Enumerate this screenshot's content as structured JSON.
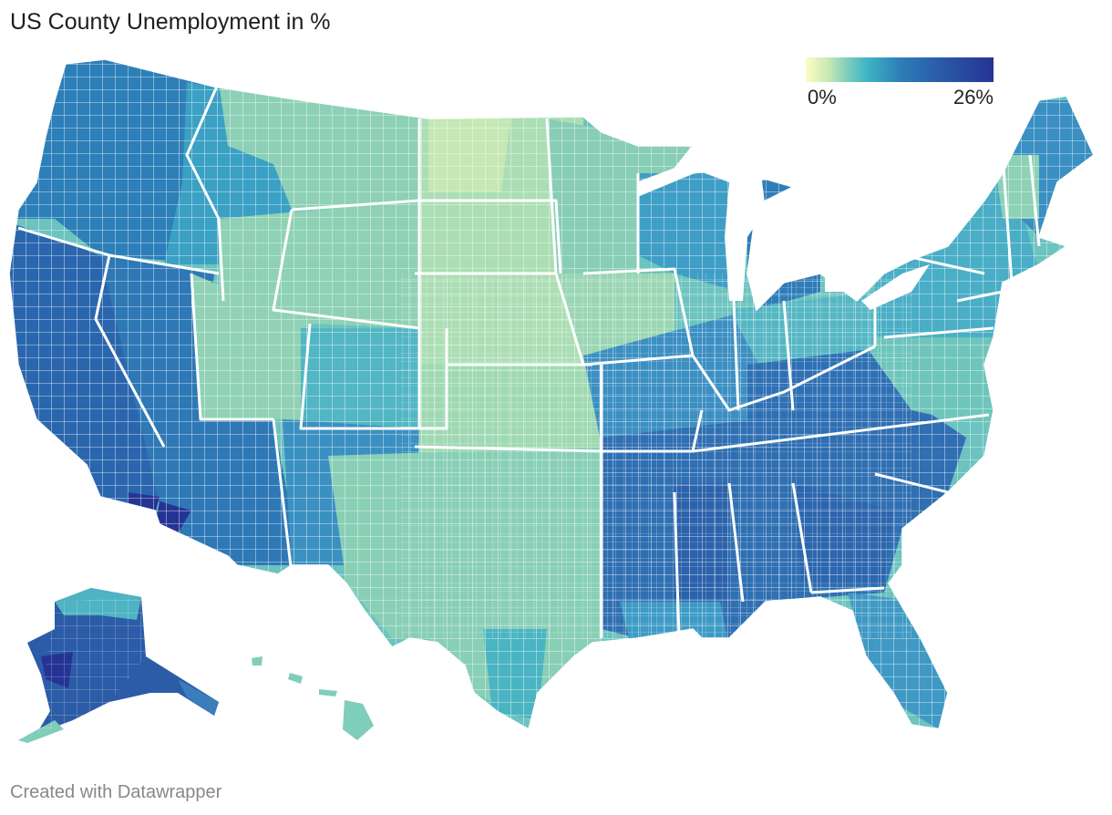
{
  "title": "US County Unemployment in %",
  "legend": {
    "min_label": "0%",
    "max_label": "26%",
    "colors": [
      "#fcfdc5",
      "#c8e9b3",
      "#7fcdbb",
      "#41b6c4",
      "#2c7fb8",
      "#2a5aa8",
      "#253494"
    ]
  },
  "footer": "Created with Datawrapper",
  "colors": {
    "low": "#c8e9b3",
    "mid": "#41b6c4",
    "high": "#253494",
    "border": "#ffffff"
  }
}
